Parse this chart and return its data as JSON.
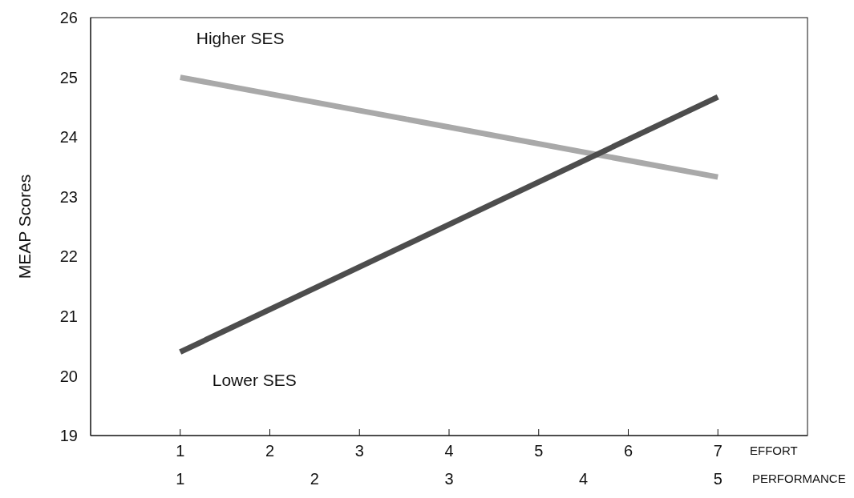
{
  "chart_data": {
    "type": "line",
    "xlabel": "EFFORT",
    "x2label": "PERFORMANCE",
    "ylabel": "MEAP Scores",
    "x": [
      1,
      7
    ],
    "xlim": [
      0,
      8
    ],
    "xticks": [
      1,
      2,
      3,
      4,
      5,
      6,
      7
    ],
    "x2lim": [
      0.333,
      5.667
    ],
    "x2ticks": [
      1,
      2,
      3,
      4,
      5
    ],
    "ylim": [
      19,
      26
    ],
    "yticks": [
      19,
      20,
      21,
      22,
      23,
      24,
      25,
      26
    ],
    "series": [
      {
        "name": "Higher SES",
        "color": "#a9a9a9",
        "values": [
          25.0,
          23.33
        ]
      },
      {
        "name": "Lower SES",
        "color": "#4d4d4d",
        "values": [
          20.4,
          24.67
        ]
      }
    ]
  }
}
